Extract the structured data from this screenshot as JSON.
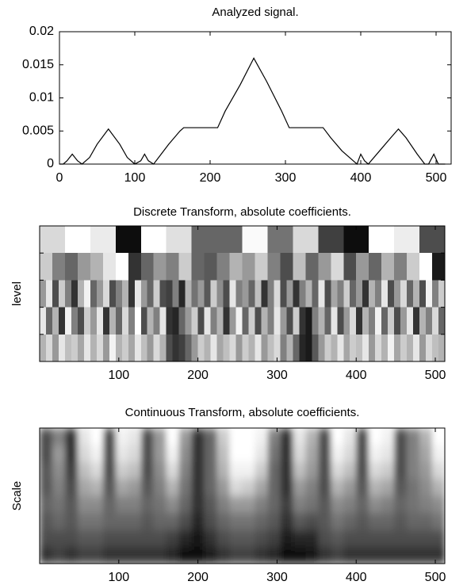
{
  "chart_data": [
    {
      "type": "line",
      "title": "Analyzed signal.",
      "color": "#000000",
      "x": [
        0,
        5,
        10,
        17,
        24,
        30,
        40,
        50,
        65,
        80,
        90,
        100,
        108,
        113,
        118,
        125,
        135,
        145,
        160,
        165,
        210,
        220,
        240,
        258,
        275,
        295,
        305,
        350,
        360,
        375,
        390,
        395,
        400,
        405,
        410,
        425,
        440,
        450,
        460,
        475,
        485,
        490,
        497,
        503,
        512
      ],
      "values": [
        0,
        0,
        0.0005,
        0.0015,
        0.0005,
        0,
        0.001,
        0.003,
        0.0053,
        0.003,
        0.001,
        0,
        0.0005,
        0.0015,
        0.0005,
        0,
        0.0015,
        0.003,
        0.005,
        0.0055,
        0.0055,
        0.008,
        0.012,
        0.016,
        0.0125,
        0.008,
        0.0055,
        0.0055,
        0.004,
        0.002,
        0.0005,
        0,
        0.0015,
        0.0005,
        0,
        0.002,
        0.004,
        0.0053,
        0.004,
        0.0015,
        0,
        0,
        0.0015,
        0,
        0
      ],
      "xlim": [
        0,
        520
      ],
      "ylim": [
        0,
        0.02
      ],
      "xticks": [
        0,
        100,
        200,
        300,
        400,
        500
      ],
      "yticks": [
        0,
        0.005,
        0.01,
        0.015,
        0.02
      ]
    },
    {
      "type": "heatmap",
      "title": "Discrete Transform, absolute coefficients.",
      "ylabel": "level",
      "cmap": "gray",
      "xlim": [
        0,
        512
      ],
      "xticks": [
        100,
        200,
        300,
        400,
        500
      ],
      "rows": [
        [
          0.85,
          1,
          0.92,
          0.05,
          1,
          0.88,
          0.4,
          0.4,
          0.98,
          0.45,
          0.85,
          0.25,
          0.05,
          1,
          0.93,
          0.3
        ],
        [
          0.8,
          0.5,
          0.4,
          0.6,
          0.7,
          0.9,
          1,
          0.2,
          0.4,
          0.6,
          0.5,
          0.8,
          0.4,
          0.35,
          0.5,
          0.7,
          0.6,
          0.8,
          0.5,
          0.3,
          0.75,
          0.4,
          0.6,
          0.85,
          0.3,
          0.6,
          0.4,
          0.7,
          0.5,
          0.8,
          1,
          0.1
        ],
        [
          0.6,
          0.9,
          0.3,
          0.8,
          0.5,
          0.2,
          0.7,
          0.95,
          0.4,
          0.6,
          0.85,
          0.3,
          0.5,
          0.7,
          0.2,
          0.9,
          0.6,
          0.4,
          0.8,
          0.3,
          0.25,
          0.5,
          0.15,
          0.7,
          0.45,
          0.6,
          0.35,
          0.8,
          0.55,
          0.3,
          0.9,
          0.5,
          0.6,
          0.4,
          0.75,
          0.2,
          0.5,
          0.85,
          0.3,
          0.6,
          0.2,
          0.5,
          0.7,
          0.4,
          0.9,
          0.3,
          0.65,
          0.5,
          0.8,
          0.4,
          0.6,
          0.2,
          0.7,
          0.5,
          0.9,
          0.3,
          0.6,
          0.85,
          0.4,
          0.7,
          0.3,
          0.95,
          0.5,
          0.8
        ],
        [
          0.9,
          0.4,
          0.7,
          0.2,
          0.95,
          0.5,
          0.3,
          0.8,
          0.6,
          0.9,
          0.2,
          0.7,
          0.4,
          0.85,
          0.5,
          1,
          0.3,
          0.7,
          0.5,
          0.9,
          0.2,
          0.15,
          0.4,
          0.6,
          0.8,
          0.3,
          0.9,
          0.5,
          0.7,
          0.2,
          0.6,
          0.95,
          0.4,
          0.8,
          0.3,
          0.7,
          0.5,
          0.9,
          0.6,
          0.3,
          0.8,
          0.2,
          0.1,
          0.5,
          0.7,
          0.4,
          0.9,
          0.3,
          0.6,
          0.85,
          0.2,
          0.7,
          0.5,
          0.95,
          0.4,
          0.8,
          0.3,
          0.6,
          0.9,
          0.2,
          0.7,
          0.5,
          0.85,
          0.4
        ],
        [
          0.7,
          0.85,
          0.6,
          0.9,
          0.75,
          0.8,
          0.65,
          0.9,
          0.7,
          0.85,
          0.6,
          0.95,
          0.7,
          0.8,
          0.65,
          0.9,
          0.75,
          0.6,
          0.85,
          0.7,
          0.3,
          0.2,
          0.25,
          0.4,
          0.6,
          0.8,
          0.7,
          0.9,
          0.65,
          0.75,
          0.85,
          0.6,
          0.8,
          0.7,
          0.9,
          0.6,
          0.75,
          0.85,
          0.5,
          0.7,
          0.4,
          0.15,
          0.1,
          0.35,
          0.6,
          0.8,
          0.7,
          0.9,
          0.65,
          0.8,
          0.75,
          0.9,
          0.6,
          0.85,
          0.7,
          0.95,
          0.65,
          0.8,
          0.7,
          0.9,
          0.6,
          0.85,
          0.75,
          0.7
        ]
      ]
    },
    {
      "type": "heatmap",
      "title": "Continuous Transform, absolute coefficients.",
      "ylabel": "Scale",
      "cmap": "gray",
      "blur": true,
      "xlim": [
        0,
        512
      ],
      "xticks": [
        100,
        200,
        300,
        400,
        500
      ],
      "rows": [
        [
          0.3,
          0.5,
          0.2,
          0.9,
          1,
          0.3,
          0.95,
          0.9,
          0.3,
          0.6,
          1,
          0.6,
          0.2,
          0.4,
          0.8,
          1,
          1,
          0.95,
          0.5,
          0.2,
          0.9,
          0.7,
          0.3,
          1,
          0.9,
          0.3,
          1,
          0.95,
          0.3,
          0.5,
          0.7,
          1
        ],
        [
          0.3,
          0.6,
          0.2,
          0.85,
          0.95,
          0.3,
          0.9,
          0.85,
          0.3,
          0.6,
          0.95,
          0.55,
          0.2,
          0.4,
          0.75,
          1,
          1,
          0.9,
          0.45,
          0.2,
          0.85,
          0.65,
          0.3,
          0.95,
          0.85,
          0.3,
          0.95,
          0.9,
          0.3,
          0.5,
          0.65,
          0.95
        ],
        [
          0.35,
          0.55,
          0.25,
          0.75,
          0.85,
          0.3,
          0.8,
          0.75,
          0.3,
          0.55,
          0.85,
          0.5,
          0.2,
          0.4,
          0.7,
          0.95,
          0.95,
          0.8,
          0.4,
          0.2,
          0.75,
          0.6,
          0.3,
          0.85,
          0.75,
          0.3,
          0.85,
          0.8,
          0.3,
          0.5,
          0.6,
          0.85
        ],
        [
          0.35,
          0.5,
          0.3,
          0.65,
          0.7,
          0.35,
          0.65,
          0.6,
          0.35,
          0.5,
          0.7,
          0.45,
          0.2,
          0.4,
          0.6,
          0.85,
          0.8,
          0.65,
          0.4,
          0.2,
          0.6,
          0.5,
          0.3,
          0.7,
          0.6,
          0.35,
          0.7,
          0.65,
          0.35,
          0.45,
          0.55,
          0.7
        ],
        [
          0.4,
          0.45,
          0.35,
          0.55,
          0.55,
          0.4,
          0.5,
          0.5,
          0.4,
          0.45,
          0.55,
          0.4,
          0.2,
          0.35,
          0.5,
          0.6,
          0.6,
          0.5,
          0.4,
          0.25,
          0.5,
          0.45,
          0.35,
          0.55,
          0.5,
          0.4,
          0.55,
          0.5,
          0.4,
          0.45,
          0.5,
          0.55
        ],
        [
          0.35,
          0.4,
          0.35,
          0.45,
          0.45,
          0.4,
          0.4,
          0.4,
          0.35,
          0.4,
          0.4,
          0.3,
          0.15,
          0.3,
          0.4,
          0.45,
          0.45,
          0.4,
          0.35,
          0.2,
          0.35,
          0.3,
          0.35,
          0.45,
          0.4,
          0.35,
          0.4,
          0.4,
          0.35,
          0.4,
          0.4,
          0.45
        ],
        [
          0.3,
          0.3,
          0.3,
          0.35,
          0.35,
          0.3,
          0.3,
          0.3,
          0.3,
          0.3,
          0.25,
          0.15,
          0.08,
          0.2,
          0.3,
          0.35,
          0.35,
          0.3,
          0.25,
          0.1,
          0.15,
          0.15,
          0.3,
          0.35,
          0.3,
          0.3,
          0.3,
          0.3,
          0.3,
          0.3,
          0.3,
          0.3
        ],
        [
          0.2,
          0.25,
          0.2,
          0.25,
          0.25,
          0.2,
          0.2,
          0.2,
          0.2,
          0.2,
          0.15,
          0.05,
          0.03,
          0.1,
          0.2,
          0.25,
          0.25,
          0.2,
          0.15,
          0.05,
          0.05,
          0.08,
          0.2,
          0.25,
          0.2,
          0.2,
          0.2,
          0.2,
          0.2,
          0.2,
          0.2,
          0.2
        ]
      ]
    }
  ]
}
